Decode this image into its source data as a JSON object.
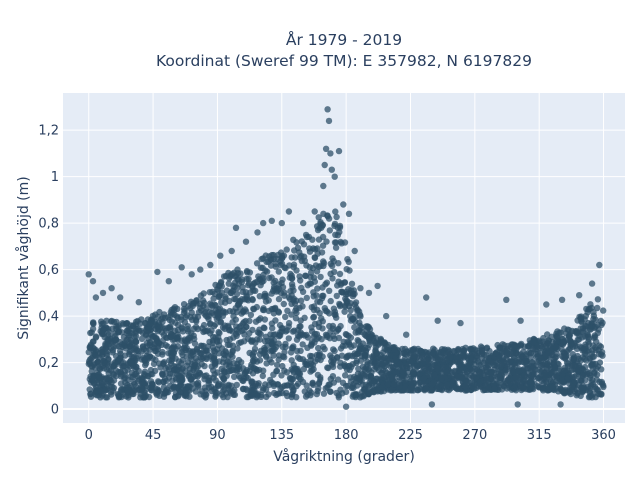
{
  "chart_data": {
    "type": "scatter",
    "title_line1": "År 1979 - 2019",
    "title_line2": "Koordinat (Sweref 99 TM): E 357982, N 6197829",
    "xlabel": "Vågriktning (grader)",
    "ylabel": "Signifikant våghöjd (m)",
    "xlim": [
      -18,
      375
    ],
    "ylim": [
      -0.06,
      1.36
    ],
    "xticks": [
      0,
      45,
      90,
      135,
      180,
      225,
      270,
      315,
      360
    ],
    "xtick_labels": [
      "0",
      "45",
      "90",
      "135",
      "180",
      "225",
      "270",
      "315",
      "360"
    ],
    "yticks": [
      0,
      0.2,
      0.4,
      0.6,
      0.8,
      1.0,
      1.2
    ],
    "ytick_labels": [
      "0",
      "0,2",
      "0,4",
      "0,6",
      "0,8",
      "1",
      "1,2"
    ],
    "grid": true,
    "legend": "none",
    "marker_color": "#2e5068",
    "plot_bg": "#e5ecf6",
    "grid_color": "#ffffff",
    "dense_envelope": {
      "direction": [
        0,
        10,
        20,
        30,
        40,
        50,
        60,
        70,
        80,
        90,
        100,
        110,
        120,
        130,
        140,
        150,
        160,
        165,
        170,
        175,
        180,
        185,
        190,
        200,
        210,
        220,
        230,
        240,
        250,
        260,
        270,
        280,
        290,
        300,
        310,
        320,
        330,
        340,
        350,
        355,
        360
      ],
      "height_lower": [
        0.05,
        0.05,
        0.05,
        0.05,
        0.05,
        0.05,
        0.05,
        0.05,
        0.05,
        0.05,
        0.05,
        0.05,
        0.05,
        0.05,
        0.05,
        0.05,
        0.05,
        0.05,
        0.05,
        0.05,
        0.05,
        0.05,
        0.05,
        0.07,
        0.08,
        0.08,
        0.08,
        0.08,
        0.08,
        0.08,
        0.08,
        0.08,
        0.08,
        0.08,
        0.08,
        0.08,
        0.07,
        0.06,
        0.05,
        0.05,
        0.05
      ],
      "height_upper": [
        0.4,
        0.38,
        0.38,
        0.38,
        0.4,
        0.42,
        0.44,
        0.46,
        0.5,
        0.55,
        0.6,
        0.62,
        0.65,
        0.68,
        0.72,
        0.75,
        0.82,
        0.87,
        0.9,
        0.85,
        0.7,
        0.52,
        0.4,
        0.32,
        0.28,
        0.26,
        0.26,
        0.26,
        0.26,
        0.26,
        0.27,
        0.27,
        0.28,
        0.28,
        0.3,
        0.32,
        0.34,
        0.38,
        0.45,
        0.5,
        0.45
      ]
    },
    "outliers": [
      {
        "x": 0,
        "y": 0.58
      },
      {
        "x": 3,
        "y": 0.55
      },
      {
        "x": 5,
        "y": 0.48
      },
      {
        "x": 10,
        "y": 0.5
      },
      {
        "x": 16,
        "y": 0.52
      },
      {
        "x": 22,
        "y": 0.48
      },
      {
        "x": 35,
        "y": 0.46
      },
      {
        "x": 48,
        "y": 0.59
      },
      {
        "x": 56,
        "y": 0.55
      },
      {
        "x": 65,
        "y": 0.61
      },
      {
        "x": 72,
        "y": 0.58
      },
      {
        "x": 78,
        "y": 0.6
      },
      {
        "x": 85,
        "y": 0.62
      },
      {
        "x": 92,
        "y": 0.66
      },
      {
        "x": 100,
        "y": 0.68
      },
      {
        "x": 103,
        "y": 0.78
      },
      {
        "x": 110,
        "y": 0.72
      },
      {
        "x": 118,
        "y": 0.76
      },
      {
        "x": 122,
        "y": 0.8
      },
      {
        "x": 128,
        "y": 0.81
      },
      {
        "x": 135,
        "y": 0.8
      },
      {
        "x": 140,
        "y": 0.85
      },
      {
        "x": 150,
        "y": 0.8
      },
      {
        "x": 158,
        "y": 0.85
      },
      {
        "x": 164,
        "y": 0.96
      },
      {
        "x": 165,
        "y": 1.05
      },
      {
        "x": 166,
        "y": 1.12
      },
      {
        "x": 167,
        "y": 1.29
      },
      {
        "x": 168,
        "y": 1.24
      },
      {
        "x": 169,
        "y": 1.1
      },
      {
        "x": 170,
        "y": 1.03
      },
      {
        "x": 172,
        "y": 1.0
      },
      {
        "x": 175,
        "y": 1.11
      },
      {
        "x": 178,
        "y": 0.88
      },
      {
        "x": 182,
        "y": 0.84
      },
      {
        "x": 186,
        "y": 0.68
      },
      {
        "x": 190,
        "y": 0.52
      },
      {
        "x": 196,
        "y": 0.5
      },
      {
        "x": 202,
        "y": 0.53
      },
      {
        "x": 208,
        "y": 0.4
      },
      {
        "x": 222,
        "y": 0.32
      },
      {
        "x": 236,
        "y": 0.48
      },
      {
        "x": 244,
        "y": 0.38
      },
      {
        "x": 260,
        "y": 0.37
      },
      {
        "x": 292,
        "y": 0.47
      },
      {
        "x": 302,
        "y": 0.38
      },
      {
        "x": 320,
        "y": 0.45
      },
      {
        "x": 331,
        "y": 0.47
      },
      {
        "x": 343,
        "y": 0.49
      },
      {
        "x": 352,
        "y": 0.54
      },
      {
        "x": 357,
        "y": 0.62
      },
      {
        "x": 180,
        "y": 0.01
      },
      {
        "x": 240,
        "y": 0.02
      },
      {
        "x": 300,
        "y": 0.02
      },
      {
        "x": 330,
        "y": 0.02
      }
    ]
  }
}
